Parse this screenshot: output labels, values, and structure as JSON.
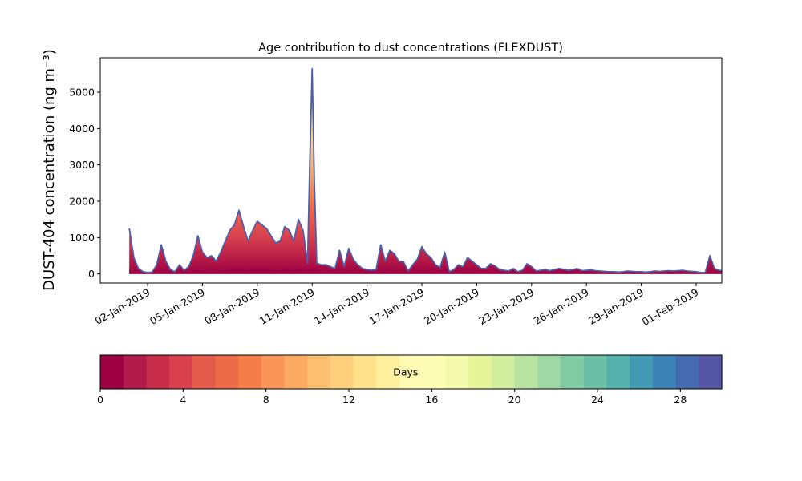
{
  "chart_data": {
    "type": "area",
    "stacked": true,
    "title": "Age contribution to dust concentrations (FLEXDUST)",
    "ylabel": "DUST-404 concentration (ng m⁻³)",
    "xlabel": "",
    "x_start": "2019-01-01",
    "x_end": "2019-01-31",
    "ylim": [
      -250,
      5950
    ],
    "yticks": [
      0,
      1000,
      2000,
      3000,
      4000,
      5000
    ],
    "xtick_labels": [
      "02-Jan-2019",
      "05-Jan-2019",
      "08-Jan-2019",
      "11-Jan-2019",
      "14-Jan-2019",
      "17-Jan-2019",
      "20-Jan-2019",
      "23-Jan-2019",
      "26-Jan-2019",
      "29-Jan-2019",
      "01-Feb-2019"
    ],
    "grid": false,
    "total_concentration": [
      [
        "2019-01-01 00:00",
        1250
      ],
      [
        "2019-01-01 06:00",
        450
      ],
      [
        "2019-01-01 12:00",
        150
      ],
      [
        "2019-01-01 18:00",
        60
      ],
      [
        "2019-01-02 00:00",
        40
      ],
      [
        "2019-01-02 06:00",
        50
      ],
      [
        "2019-01-02 12:00",
        250
      ],
      [
        "2019-01-02 18:00",
        800
      ],
      [
        "2019-01-03 00:00",
        350
      ],
      [
        "2019-01-03 06:00",
        120
      ],
      [
        "2019-01-03 12:00",
        60
      ],
      [
        "2019-01-03 18:00",
        250
      ],
      [
        "2019-01-04 00:00",
        100
      ],
      [
        "2019-01-04 06:00",
        200
      ],
      [
        "2019-01-04 12:00",
        500
      ],
      [
        "2019-01-04 18:00",
        1050
      ],
      [
        "2019-01-05 00:00",
        600
      ],
      [
        "2019-01-05 06:00",
        450
      ],
      [
        "2019-01-05 12:00",
        500
      ],
      [
        "2019-01-05 18:00",
        350
      ],
      [
        "2019-01-06 00:00",
        600
      ],
      [
        "2019-01-06 06:00",
        900
      ],
      [
        "2019-01-06 12:00",
        1200
      ],
      [
        "2019-01-06 18:00",
        1350
      ],
      [
        "2019-01-07 00:00",
        1750
      ],
      [
        "2019-01-07 06:00",
        1300
      ],
      [
        "2019-01-07 12:00",
        900
      ],
      [
        "2019-01-07 18:00",
        1200
      ],
      [
        "2019-01-08 00:00",
        1450
      ],
      [
        "2019-01-08 06:00",
        1350
      ],
      [
        "2019-01-08 12:00",
        1250
      ],
      [
        "2019-01-08 18:00",
        1050
      ],
      [
        "2019-01-09 00:00",
        850
      ],
      [
        "2019-01-09 06:00",
        900
      ],
      [
        "2019-01-09 12:00",
        1300
      ],
      [
        "2019-01-09 18:00",
        1200
      ],
      [
        "2019-01-10 00:00",
        900
      ],
      [
        "2019-01-10 06:00",
        1500
      ],
      [
        "2019-01-10 12:00",
        1200
      ],
      [
        "2019-01-10 18:00",
        300
      ],
      [
        "2019-01-10 21:00",
        3200
      ],
      [
        "2019-01-11 00:00",
        5650
      ],
      [
        "2019-01-11 03:00",
        2500
      ],
      [
        "2019-01-11 06:00",
        300
      ],
      [
        "2019-01-11 12:00",
        250
      ],
      [
        "2019-01-11 18:00",
        250
      ],
      [
        "2019-01-12 00:00",
        200
      ],
      [
        "2019-01-12 06:00",
        150
      ],
      [
        "2019-01-12 12:00",
        650
      ],
      [
        "2019-01-12 18:00",
        200
      ],
      [
        "2019-01-13 00:00",
        700
      ],
      [
        "2019-01-13 06:00",
        400
      ],
      [
        "2019-01-13 12:00",
        250
      ],
      [
        "2019-01-13 18:00",
        150
      ],
      [
        "2019-01-14 00:00",
        120
      ],
      [
        "2019-01-14 06:00",
        100
      ],
      [
        "2019-01-14 12:00",
        120
      ],
      [
        "2019-01-14 18:00",
        800
      ],
      [
        "2019-01-15 00:00",
        350
      ],
      [
        "2019-01-15 06:00",
        650
      ],
      [
        "2019-01-15 12:00",
        550
      ],
      [
        "2019-01-15 18:00",
        350
      ],
      [
        "2019-01-16 00:00",
        330
      ],
      [
        "2019-01-16 06:00",
        80
      ],
      [
        "2019-01-16 12:00",
        250
      ],
      [
        "2019-01-16 18:00",
        400
      ],
      [
        "2019-01-17 00:00",
        750
      ],
      [
        "2019-01-17 06:00",
        550
      ],
      [
        "2019-01-17 12:00",
        450
      ],
      [
        "2019-01-17 18:00",
        250
      ],
      [
        "2019-01-18 00:00",
        180
      ],
      [
        "2019-01-18 06:00",
        600
      ],
      [
        "2019-01-18 12:00",
        60
      ],
      [
        "2019-01-18 18:00",
        120
      ],
      [
        "2019-01-19 00:00",
        250
      ],
      [
        "2019-01-19 06:00",
        200
      ],
      [
        "2019-01-19 12:00",
        450
      ],
      [
        "2019-01-19 18:00",
        350
      ],
      [
        "2019-01-20 00:00",
        250
      ],
      [
        "2019-01-20 06:00",
        150
      ],
      [
        "2019-01-20 12:00",
        150
      ],
      [
        "2019-01-20 18:00",
        280
      ],
      [
        "2019-01-21 00:00",
        220
      ],
      [
        "2019-01-21 06:00",
        120
      ],
      [
        "2019-01-21 12:00",
        100
      ],
      [
        "2019-01-21 18:00",
        80
      ],
      [
        "2019-01-22 00:00",
        150
      ],
      [
        "2019-01-22 06:00",
        60
      ],
      [
        "2019-01-22 12:00",
        100
      ],
      [
        "2019-01-22 18:00",
        280
      ],
      [
        "2019-01-23 00:00",
        200
      ],
      [
        "2019-01-23 06:00",
        80
      ],
      [
        "2019-01-23 12:00",
        100
      ],
      [
        "2019-01-23 18:00",
        120
      ],
      [
        "2019-01-24 00:00",
        90
      ],
      [
        "2019-01-24 06:00",
        120
      ],
      [
        "2019-01-24 12:00",
        150
      ],
      [
        "2019-01-24 18:00",
        130
      ],
      [
        "2019-01-25 00:00",
        100
      ],
      [
        "2019-01-25 06:00",
        120
      ],
      [
        "2019-01-25 12:00",
        150
      ],
      [
        "2019-01-25 18:00",
        90
      ],
      [
        "2019-01-26 00:00",
        100
      ],
      [
        "2019-01-26 06:00",
        110
      ],
      [
        "2019-01-26 12:00",
        90
      ],
      [
        "2019-01-26 18:00",
        80
      ],
      [
        "2019-01-27 00:00",
        70
      ],
      [
        "2019-01-27 06:00",
        60
      ],
      [
        "2019-01-27 12:00",
        60
      ],
      [
        "2019-01-27 18:00",
        50
      ],
      [
        "2019-01-28 00:00",
        60
      ],
      [
        "2019-01-28 06:00",
        80
      ],
      [
        "2019-01-28 12:00",
        70
      ],
      [
        "2019-01-28 18:00",
        60
      ],
      [
        "2019-01-29 00:00",
        60
      ],
      [
        "2019-01-29 06:00",
        50
      ],
      [
        "2019-01-29 12:00",
        60
      ],
      [
        "2019-01-29 18:00",
        80
      ],
      [
        "2019-01-30 00:00",
        70
      ],
      [
        "2019-01-30 06:00",
        80
      ],
      [
        "2019-01-30 12:00",
        90
      ],
      [
        "2019-01-30 18:00",
        80
      ],
      [
        "2019-01-31 00:00",
        90
      ],
      [
        "2019-01-31 06:00",
        100
      ],
      [
        "2019-01-31 12:00",
        80
      ],
      [
        "2019-01-31 18:00",
        70
      ],
      [
        "2019-02-01 00:00",
        60
      ],
      [
        "2019-02-01 06:00",
        40
      ],
      [
        "2019-02-01 12:00",
        40
      ],
      [
        "2019-02-01 18:00",
        500
      ],
      [
        "2019-02-02 00:00",
        150
      ],
      [
        "2019-02-02 06:00",
        100
      ],
      [
        "2019-02-02 12:00",
        80
      ],
      [
        "2019-02-02 18:00",
        100
      ],
      [
        "2019-02-03 00:00",
        150
      ],
      [
        "2019-02-03 06:00",
        250
      ],
      [
        "2019-02-03 12:00",
        300
      ],
      [
        "2019-02-03 18:00",
        150
      ],
      [
        "2019-02-04 00:00",
        80
      ],
      [
        "2019-02-04 06:00",
        100
      ]
    ],
    "age_bins_days": 30,
    "colormap": [
      "#9e0142",
      "#b11a4a",
      "#c72c4a",
      "#d9404e",
      "#e35a4a",
      "#ec6a46",
      "#f47d4a",
      "#f99557",
      "#fdab62",
      "#fdbf71",
      "#fed07e",
      "#fee08b",
      "#feef9d",
      "#fffbb5",
      "#fcfeb6",
      "#f2f9aa",
      "#e6f598",
      "#d0ec9c",
      "#b9e3a1",
      "#9fd8a4",
      "#80cba4",
      "#69bea3",
      "#55b0ab",
      "#4299b4",
      "#3a82b6",
      "#456ab0",
      "#5556a4"
    ],
    "line_color": "#4a5fa8",
    "colorbar": {
      "label": "Days",
      "range": [
        0,
        30
      ],
      "ticks": [
        0,
        4,
        8,
        12,
        16,
        20,
        24,
        28
      ]
    }
  }
}
